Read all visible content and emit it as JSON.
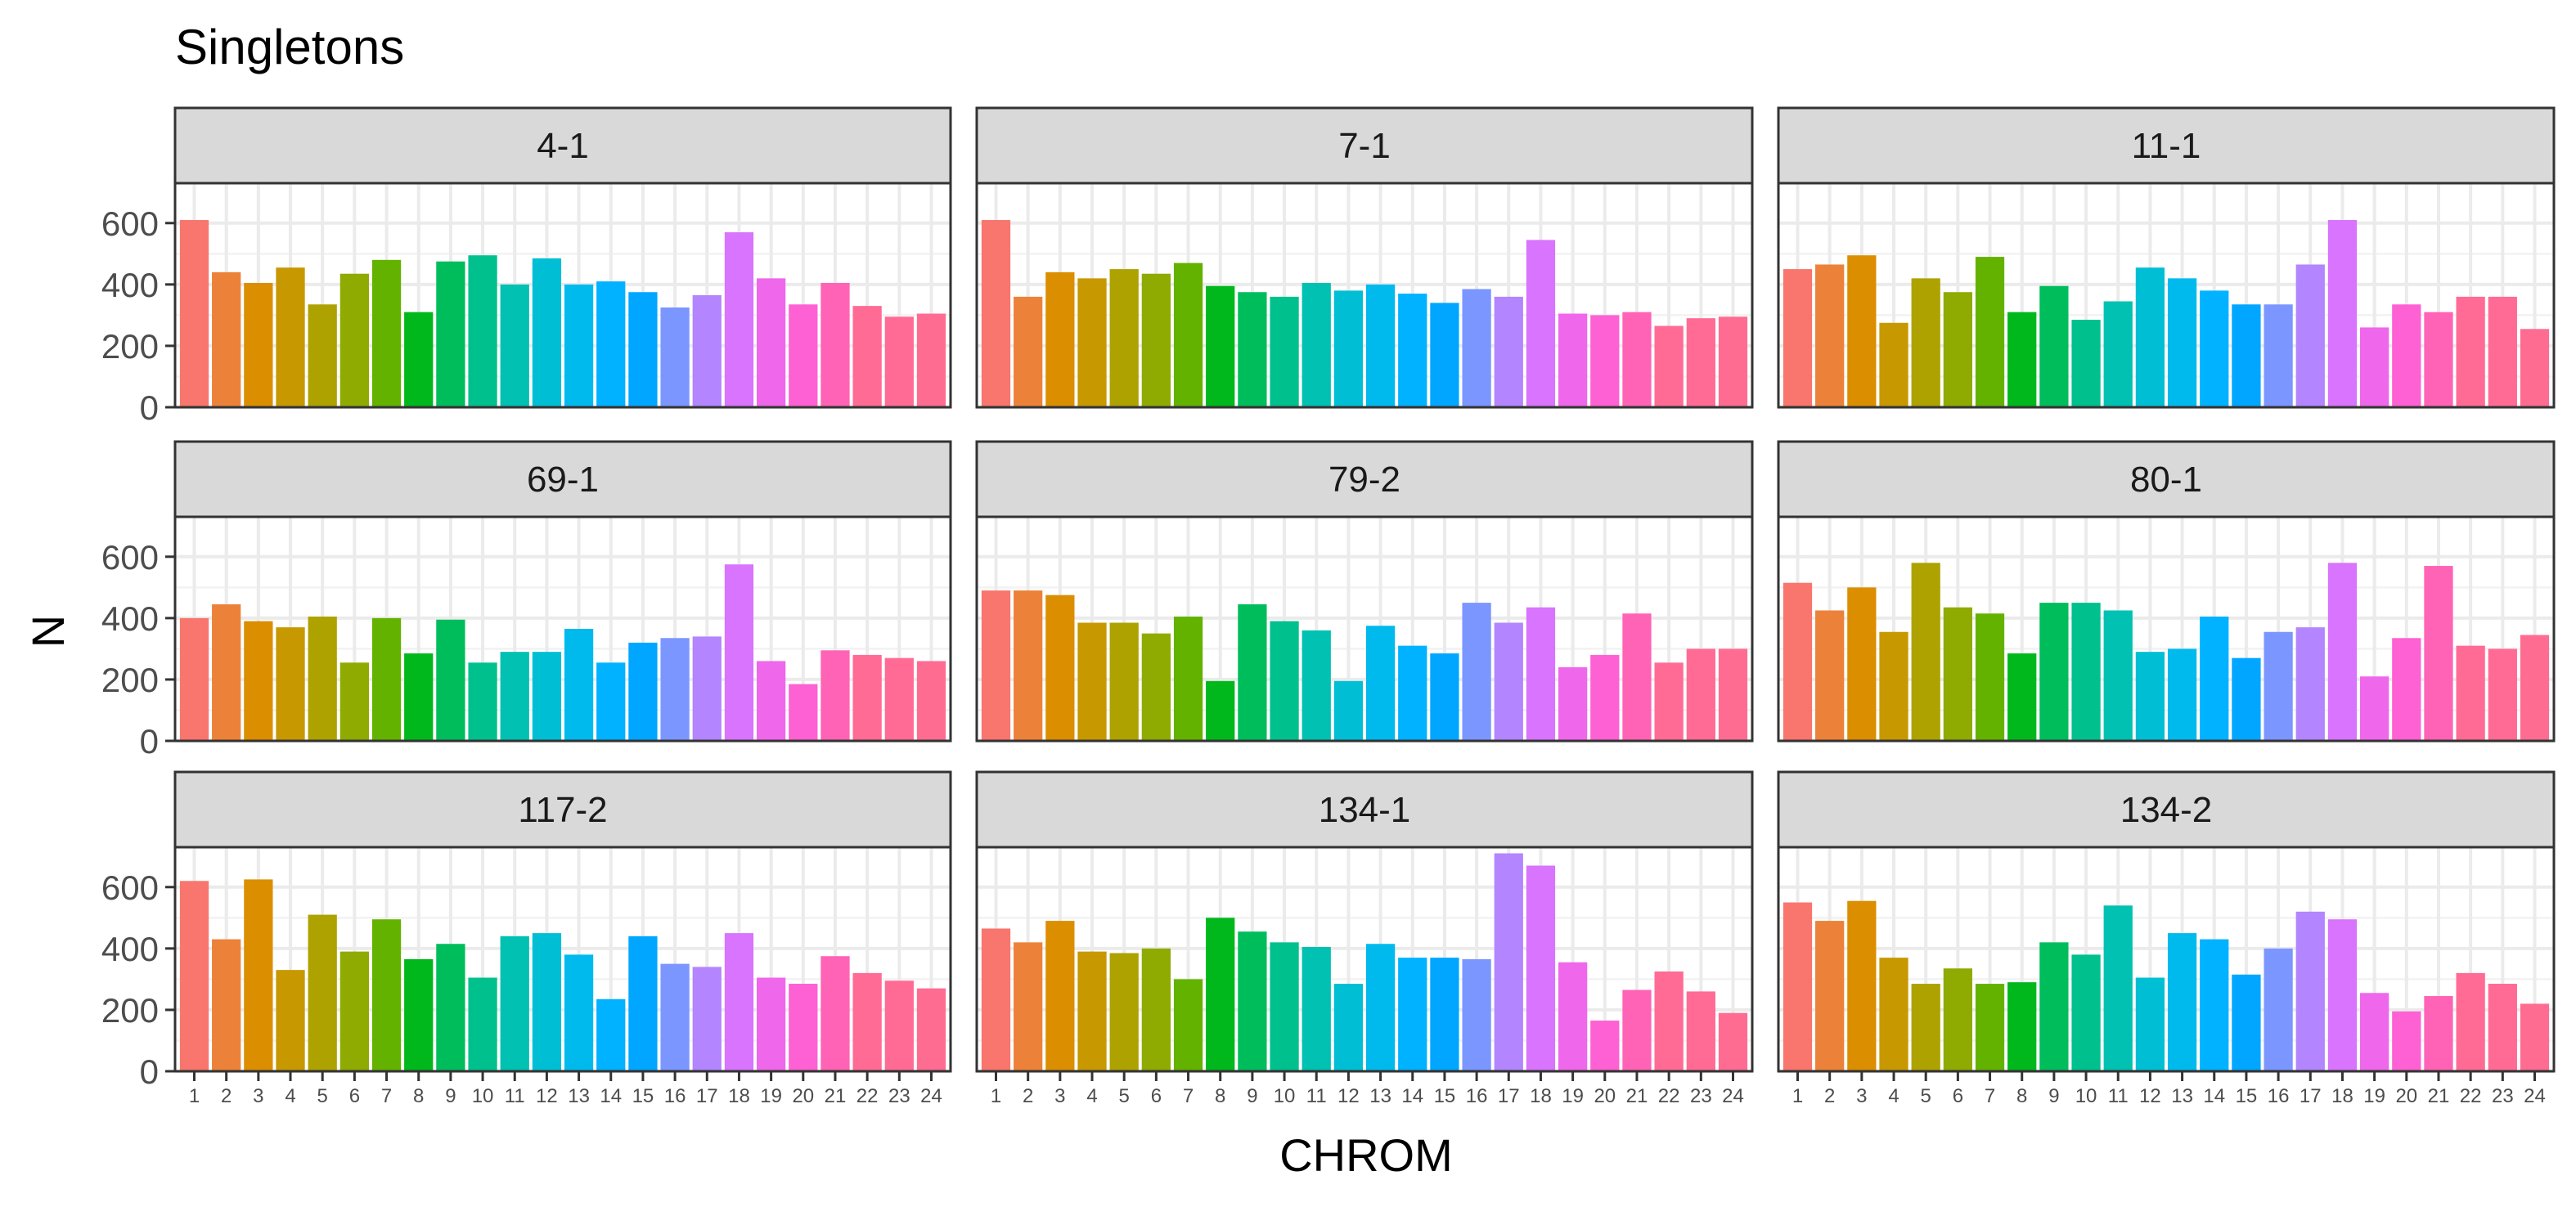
{
  "chart_data": {
    "type": "bar",
    "title": "Singletons",
    "xlabel": "CHROM",
    "ylabel": "N",
    "ylim": [
      0,
      730
    ],
    "yticks": [
      0,
      200,
      400,
      600
    ],
    "categories": [
      "1",
      "2",
      "3",
      "4",
      "5",
      "6",
      "7",
      "8",
      "9",
      "10",
      "11",
      "12",
      "13",
      "14",
      "15",
      "16",
      "17",
      "18",
      "19",
      "20",
      "21",
      "22",
      "23",
      "24"
    ],
    "category_colors": [
      "#F8766D",
      "#EC8239",
      "#DB8E00",
      "#C79800",
      "#AEA200",
      "#8FAA00",
      "#64B200",
      "#00B81B",
      "#00BD5C",
      "#00C08D",
      "#00C1B2",
      "#00BFD4",
      "#00BAEE",
      "#00B2FF",
      "#00A6FF",
      "#7C96FF",
      "#B385FF",
      "#D874FD",
      "#EF67EB",
      "#FD61D3",
      "#FF63B6",
      "#FF6B94",
      "#FF6B94",
      "#FF6C91"
    ],
    "grid": true,
    "legend": "none",
    "panels": [
      {
        "label": "4-1",
        "values": [
          610,
          440,
          405,
          455,
          335,
          435,
          480,
          310,
          475,
          495,
          400,
          485,
          400,
          410,
          375,
          325,
          365,
          570,
          420,
          335,
          405,
          330,
          295,
          305
        ]
      },
      {
        "label": "7-1",
        "values": [
          610,
          360,
          440,
          420,
          450,
          435,
          470,
          395,
          375,
          360,
          405,
          380,
          400,
          370,
          340,
          385,
          360,
          545,
          305,
          300,
          310,
          265,
          290,
          295
        ]
      },
      {
        "label": "11-1",
        "values": [
          450,
          465,
          495,
          275,
          420,
          375,
          490,
          310,
          395,
          285,
          345,
          455,
          420,
          380,
          335,
          335,
          465,
          610,
          260,
          335,
          310,
          360,
          360,
          255
        ]
      },
      {
        "label": "69-1",
        "values": [
          400,
          445,
          390,
          370,
          405,
          255,
          400,
          285,
          395,
          255,
          290,
          290,
          365,
          255,
          320,
          335,
          340,
          575,
          260,
          185,
          295,
          280,
          270,
          260
        ]
      },
      {
        "label": "79-2",
        "values": [
          490,
          490,
          475,
          385,
          385,
          350,
          405,
          195,
          445,
          390,
          360,
          195,
          375,
          310,
          285,
          450,
          385,
          435,
          240,
          280,
          415,
          255,
          300,
          300
        ]
      },
      {
        "label": "80-1",
        "values": [
          515,
          425,
          500,
          355,
          580,
          435,
          415,
          285,
          450,
          450,
          425,
          290,
          300,
          405,
          270,
          355,
          370,
          580,
          210,
          335,
          570,
          310,
          300,
          345
        ]
      },
      {
        "label": "117-2",
        "values": [
          620,
          430,
          625,
          330,
          510,
          390,
          495,
          365,
          415,
          305,
          440,
          450,
          380,
          235,
          440,
          350,
          340,
          450,
          305,
          285,
          375,
          320,
          295,
          270
        ]
      },
      {
        "label": "134-1",
        "values": [
          465,
          420,
          490,
          390,
          385,
          400,
          300,
          500,
          455,
          420,
          405,
          285,
          415,
          370,
          370,
          365,
          710,
          670,
          355,
          165,
          265,
          325,
          260,
          190
        ]
      },
      {
        "label": "134-2",
        "values": [
          550,
          490,
          555,
          370,
          285,
          335,
          285,
          290,
          420,
          380,
          540,
          305,
          450,
          430,
          315,
          400,
          520,
          495,
          255,
          195,
          245,
          320,
          285,
          220
        ]
      }
    ]
  }
}
